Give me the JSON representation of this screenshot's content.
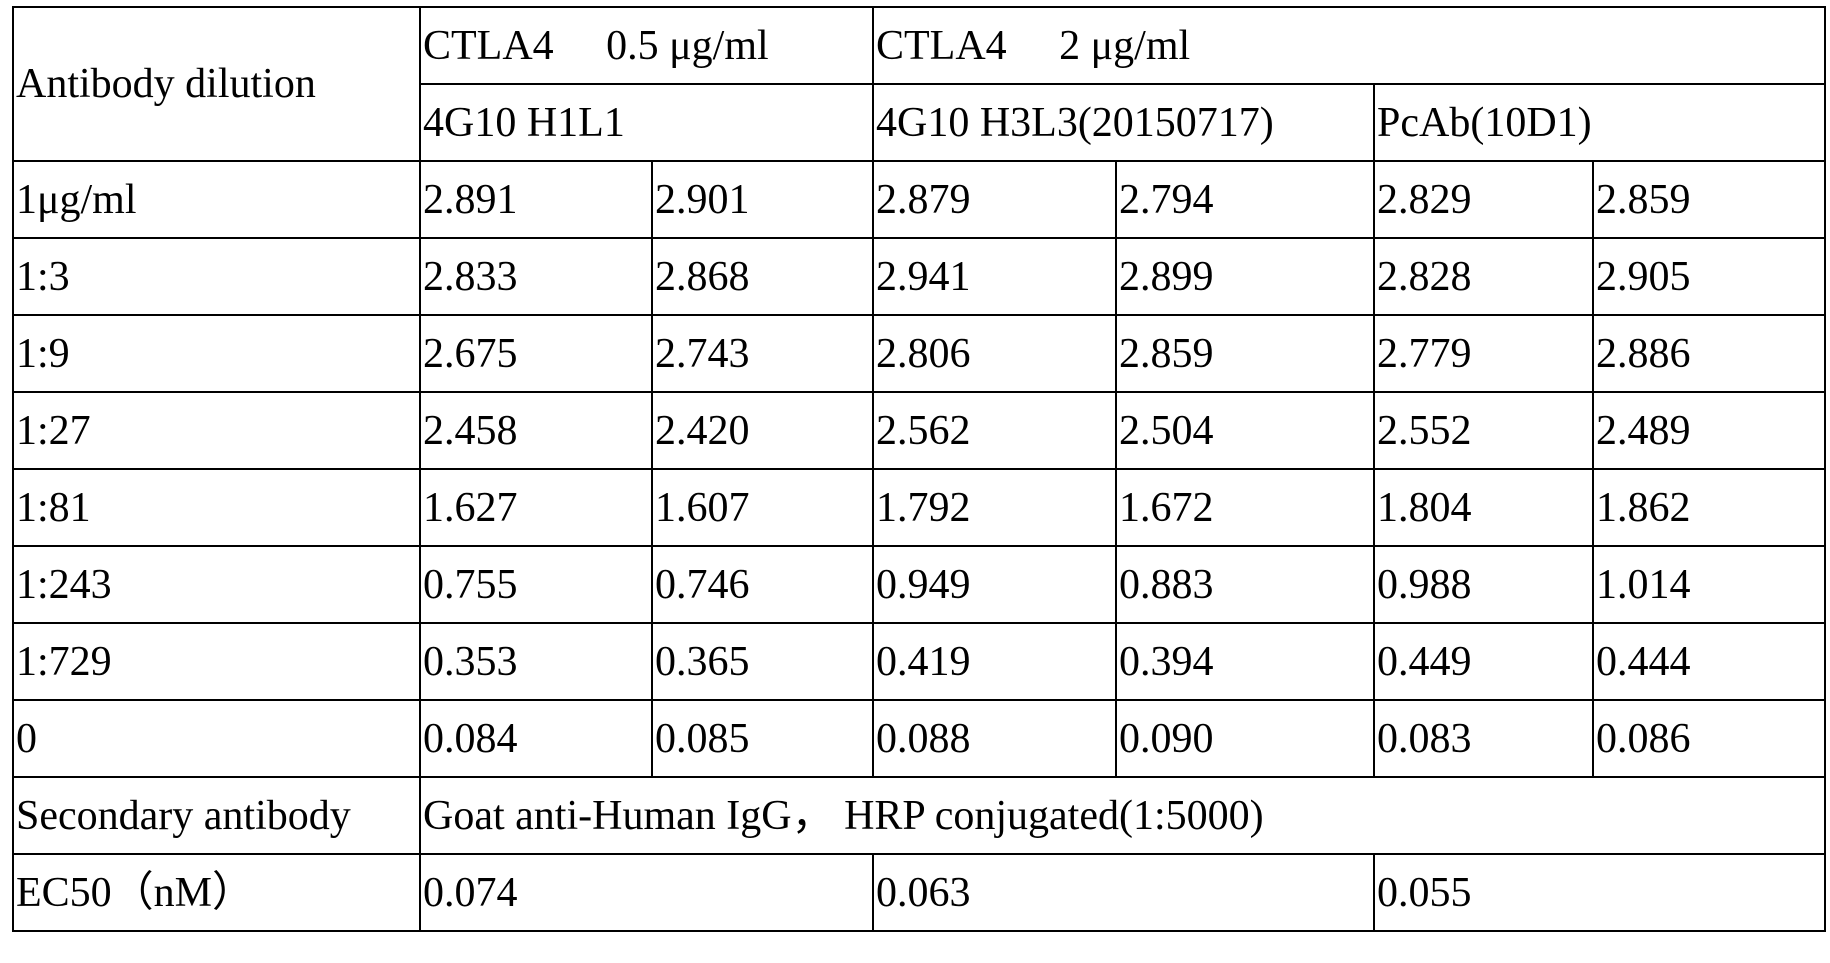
{
  "header": {
    "row_label": "Antibody dilution",
    "groups": [
      "CTLA4　 0.5 μg/ml",
      "CTLA4　 2 μg/ml"
    ],
    "antibodies": [
      "4G10 H1L1",
      "4G10 H3L3(20150717)",
      "PcAb(10D1)"
    ]
  },
  "rows": [
    {
      "label": "1μg/ml",
      "values": [
        "2.891",
        "2.901",
        "2.879",
        "2.794",
        "2.829",
        "2.859"
      ]
    },
    {
      "label": "1:3",
      "values": [
        "2.833",
        "2.868",
        "2.941",
        "2.899",
        "2.828",
        "2.905"
      ]
    },
    {
      "label": "1:9",
      "values": [
        "2.675",
        "2.743",
        "2.806",
        "2.859",
        "2.779",
        "2.886"
      ]
    },
    {
      "label": "1:27",
      "values": [
        "2.458",
        "2.420",
        "2.562",
        "2.504",
        "2.552",
        "2.489"
      ]
    },
    {
      "label": "1:81",
      "values": [
        "1.627",
        "1.607",
        "1.792",
        "1.672",
        "1.804",
        "1.862"
      ]
    },
    {
      "label": "1:243",
      "values": [
        "0.755",
        "0.746",
        "0.949",
        "0.883",
        "0.988",
        "1.014"
      ]
    },
    {
      "label": "1:729",
      "values": [
        "0.353",
        "0.365",
        "0.419",
        "0.394",
        "0.449",
        "0.444"
      ]
    },
    {
      "label": "0",
      "values": [
        "0.084",
        "0.085",
        "0.088",
        "0.090",
        "0.083",
        "0.086"
      ]
    }
  ],
  "secondary": {
    "label": "Secondary antibody",
    "text": "Goat anti-Human IgG， HRP conjugated(1:5000)"
  },
  "ec50": {
    "label": "EC50（nM）",
    "values": [
      "0.074",
      "0.063",
      "0.055"
    ]
  }
}
